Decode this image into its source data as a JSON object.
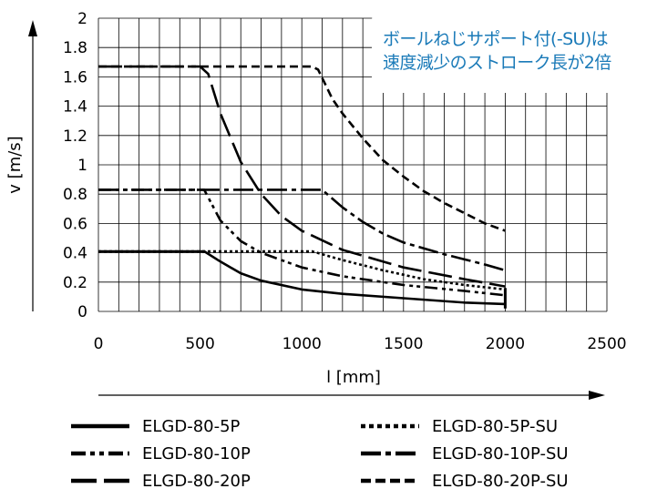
{
  "callout": {
    "line1": "ボールねじサポート付(-SU)は",
    "line2": "速度減少のストローク長が2倍"
  },
  "chart_data": {
    "type": "line",
    "title": "",
    "xlabel": "l [mm]",
    "ylabel": "v [m/s]",
    "xlim": [
      0,
      2500
    ],
    "ylim": [
      0,
      2
    ],
    "x_ticks": [
      "0",
      "500",
      "1000",
      "1500",
      "2000",
      "2500"
    ],
    "y_ticks": [
      "0",
      "0.2",
      "0.4",
      "0.6",
      "0.8",
      "1",
      "1.2",
      "1.4",
      "1.6",
      "1.8",
      "2"
    ],
    "grid": true,
    "legend_position": "bottom",
    "series": [
      {
        "name": "ELGD-80-5P",
        "style": "solid",
        "x": [
          0,
          500,
          520,
          600,
          700,
          800,
          1000,
          1200,
          1500,
          1800,
          2000
        ],
        "y": [
          0.41,
          0.41,
          0.41,
          0.34,
          0.26,
          0.21,
          0.15,
          0.12,
          0.09,
          0.06,
          0.05
        ]
      },
      {
        "name": "ELGD-80-5P-SU",
        "style": "dotted",
        "x": [
          0,
          1000,
          1050,
          1200,
          1400,
          1600,
          1800,
          2000
        ],
        "y": [
          0.41,
          0.41,
          0.41,
          0.35,
          0.28,
          0.22,
          0.18,
          0.15
        ]
      },
      {
        "name": "ELGD-80-10P",
        "style": "dash-dot-dot",
        "x": [
          0,
          500,
          520,
          600,
          700,
          800,
          1000,
          1200,
          1500,
          1800,
          2000
        ],
        "y": [
          0.83,
          0.83,
          0.83,
          0.62,
          0.48,
          0.4,
          0.3,
          0.24,
          0.18,
          0.14,
          0.11
        ]
      },
      {
        "name": "ELGD-80-10P-SU",
        "style": "dash-dot",
        "x": [
          0,
          1050,
          1100,
          1200,
          1300,
          1400,
          1500,
          1700,
          1900,
          2000
        ],
        "y": [
          0.83,
          0.83,
          0.83,
          0.71,
          0.61,
          0.53,
          0.47,
          0.39,
          0.32,
          0.28
        ]
      },
      {
        "name": "ELGD-80-20P",
        "style": "long-dash",
        "x": [
          0,
          500,
          540,
          600,
          700,
          800,
          900,
          1000,
          1200,
          1500,
          1800,
          2000
        ],
        "y": [
          1.67,
          1.67,
          1.62,
          1.35,
          1.02,
          0.8,
          0.65,
          0.55,
          0.42,
          0.3,
          0.22,
          0.17
        ]
      },
      {
        "name": "ELGD-80-20P-SU",
        "style": "dashed",
        "x": [
          0,
          1050,
          1080,
          1150,
          1200,
          1300,
          1400,
          1500,
          1600,
          1700,
          1800,
          1900,
          2000
        ],
        "y": [
          1.67,
          1.67,
          1.65,
          1.45,
          1.35,
          1.18,
          1.03,
          0.92,
          0.82,
          0.74,
          0.67,
          0.6,
          0.55
        ]
      }
    ],
    "legend": [
      {
        "label": "ELGD-80-5P",
        "style": "solid"
      },
      {
        "label": "ELGD-80-5P-SU",
        "style": "dotted"
      },
      {
        "label": "ELGD-80-10P",
        "style": "dash-dot-dot"
      },
      {
        "label": "ELGD-80-10P-SU",
        "style": "dash-dot"
      },
      {
        "label": "ELGD-80-20P",
        "style": "long-dash"
      },
      {
        "label": "ELGD-80-20P-SU",
        "style": "dashed"
      }
    ]
  }
}
